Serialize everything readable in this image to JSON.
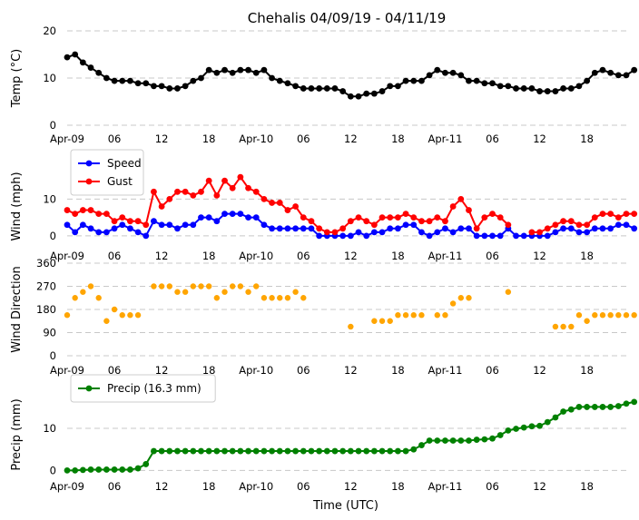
{
  "chart_data": {
    "title": "Chehalis 04/09/19 - 04/11/19",
    "xlabel": "Time (UTC)",
    "x_tick_labels": [
      "Apr-09",
      "06",
      "12",
      "18",
      "Apr-10",
      "06",
      "12",
      "18",
      "Apr-11",
      "06",
      "12",
      "18"
    ],
    "x_tick_hours": [
      0,
      6,
      12,
      18,
      24,
      30,
      36,
      42,
      48,
      54,
      60,
      66
    ],
    "x_unit": "hours since 2019-04-09 00:00 UTC",
    "x_step_hours": 1,
    "x_range": [
      0,
      71
    ],
    "grid": true,
    "panels": [
      {
        "id": "temp",
        "type": "line",
        "ylabel": "Temp (°C)",
        "ylim": [
          0,
          20
        ],
        "yticks": [
          0,
          10,
          20
        ],
        "legend": null,
        "series": [
          {
            "name": "",
            "color": "#000000",
            "values": [
              14.4,
              15.0,
              13.3,
              12.2,
              11.1,
              10.0,
              9.4,
              9.4,
              9.4,
              8.9,
              8.9,
              8.3,
              8.3,
              7.8,
              7.8,
              8.3,
              9.4,
              10.0,
              11.7,
              11.1,
              11.7,
              11.1,
              11.7,
              11.7,
              11.1,
              11.7,
              10.0,
              9.4,
              8.9,
              8.3,
              7.8,
              7.8,
              7.8,
              7.8,
              7.8,
              7.2,
              6.1,
              6.1,
              6.7,
              6.7,
              7.2,
              8.3,
              8.3,
              9.4,
              9.4,
              9.4,
              10.6,
              11.7,
              11.1,
              11.1,
              10.6,
              9.4,
              9.4,
              8.9,
              8.9,
              8.3,
              8.3,
              7.8,
              7.8,
              7.8,
              7.2,
              7.2,
              7.2,
              7.8,
              7.8,
              8.3,
              9.4,
              11.1,
              11.7,
              11.1,
              10.6,
              10.6,
              11.7
            ]
          }
        ]
      },
      {
        "id": "wind",
        "type": "line",
        "ylabel": "Wind (mph)",
        "ylim": [
          -2,
          18
        ],
        "yticks": [
          0,
          10
        ],
        "legend": "top-left",
        "series": [
          {
            "name": "Speed",
            "color": "#0000ff",
            "values": [
              3,
              1,
              3,
              2,
              1,
              1,
              2,
              3,
              2,
              1,
              0,
              4,
              3,
              3,
              2,
              3,
              3,
              5,
              5,
              4,
              6,
              6,
              6,
              5,
              5,
              3,
              2,
              2,
              2,
              2,
              2,
              2,
              0,
              0,
              0,
              0,
              0,
              1,
              0,
              1,
              1,
              2,
              2,
              3,
              3,
              1,
              0,
              1,
              2,
              1,
              2,
              2,
              0,
              0,
              0,
              0,
              2,
              0,
              0,
              0,
              0,
              0,
              1,
              2,
              2,
              1,
              1,
              2,
              2,
              2,
              3,
              3,
              2
            ]
          },
          {
            "name": "Gust",
            "color": "#ff0000",
            "values": [
              7,
              6,
              7,
              7,
              6,
              6,
              4,
              5,
              4,
              4,
              3,
              12,
              8,
              10,
              12,
              12,
              11,
              12,
              15,
              11,
              15,
              13,
              16,
              13,
              12,
              10,
              9,
              9,
              7,
              8,
              5,
              4,
              2,
              1,
              1,
              2,
              4,
              5,
              4,
              3,
              5,
              5,
              5,
              6,
              5,
              4,
              4,
              5,
              4,
              8,
              10,
              7,
              2,
              5,
              6,
              5,
              3,
              null,
              null,
              1,
              1,
              2,
              3,
              4,
              4,
              3,
              3,
              5,
              6,
              6,
              5,
              6,
              6
            ]
          }
        ]
      },
      {
        "id": "wdir",
        "type": "scatter",
        "ylabel": "Wind Direction",
        "ylim": [
          0,
          360
        ],
        "yticks": [
          0,
          90,
          180,
          270,
          360
        ],
        "legend": null,
        "series": [
          {
            "name": "",
            "color": "#ffa500",
            "values": [
              158,
              225,
              248,
              270,
              225,
              135,
              180,
              158,
              158,
              158,
              null,
              270,
              270,
              270,
              248,
              248,
              270,
              270,
              270,
              225,
              248,
              270,
              270,
              248,
              270,
              225,
              225,
              225,
              225,
              248,
              225,
              null,
              null,
              null,
              null,
              null,
              113,
              null,
              null,
              135,
              135,
              135,
              158,
              158,
              158,
              158,
              null,
              158,
              158,
              203,
              225,
              225,
              null,
              null,
              null,
              null,
              248,
              null,
              null,
              null,
              null,
              null,
              113,
              113,
              113,
              158,
              135,
              158,
              158,
              158,
              158,
              158,
              158
            ]
          }
        ]
      },
      {
        "id": "precip",
        "type": "line",
        "ylabel": "Precip (mm)",
        "ylim": [
          -1,
          18
        ],
        "yticks": [
          0,
          10
        ],
        "legend": "top-left",
        "series": [
          {
            "name": "Precip (16.3 mm)",
            "color": "#008000",
            "values": [
              0,
              0,
              0.1,
              0.2,
              0.2,
              0.2,
              0.2,
              0.2,
              0.2,
              0.5,
              1.5,
              4.6,
              4.6,
              4.6,
              4.6,
              4.6,
              4.6,
              4.6,
              4.6,
              4.6,
              4.6,
              4.6,
              4.6,
              4.6,
              4.6,
              4.6,
              4.6,
              4.6,
              4.6,
              4.6,
              4.6,
              4.6,
              4.6,
              4.6,
              4.6,
              4.6,
              4.6,
              4.6,
              4.6,
              4.6,
              4.6,
              4.6,
              4.6,
              4.6,
              5.0,
              6.0,
              7.1,
              7.1,
              7.1,
              7.1,
              7.1,
              7.1,
              7.3,
              7.4,
              7.6,
              8.4,
              9.5,
              9.9,
              10.2,
              10.5,
              10.6,
              11.5,
              12.6,
              14.0,
              14.5,
              15.1,
              15.1,
              15.1,
              15.1,
              15.1,
              15.3,
              15.9,
              16.3
            ]
          }
        ]
      }
    ]
  }
}
